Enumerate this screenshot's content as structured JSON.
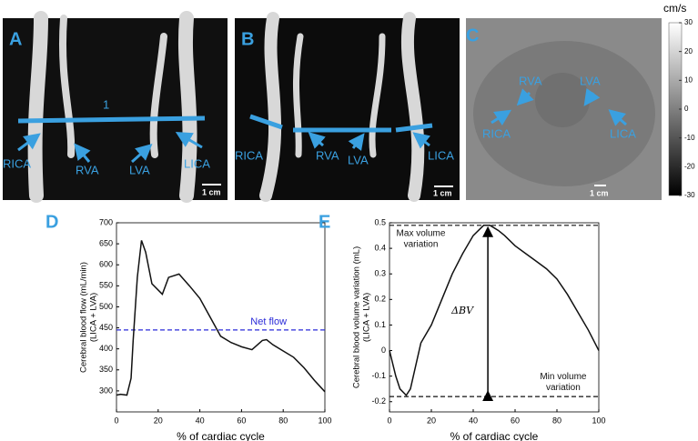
{
  "panels": {
    "A": {
      "letter": "A",
      "labels": [
        "1",
        "RICA",
        "RVA",
        "LVA",
        "LICA"
      ],
      "scale": "1 cm"
    },
    "B": {
      "letter": "B",
      "labels": [
        "RICA",
        "RVA",
        "LVA",
        "LICA"
      ],
      "scale": "1 cm"
    },
    "C": {
      "letter": "C",
      "labels": [
        "RVA",
        "LVA",
        "RICA",
        "LICA"
      ],
      "scale": "1 cm",
      "colorbar": {
        "unit": "cm/s",
        "lim": [
          -30,
          30
        ],
        "ticks": [
          30,
          20,
          10,
          0,
          -10,
          -20,
          -30
        ]
      }
    }
  },
  "chart_data": [
    {
      "type": "line",
      "panel": "D",
      "xlabel": "% of cardiac cycle",
      "ylabel": [
        "Cerebral blood flow (mL/min)",
        "(LICA + LVA)"
      ],
      "x": [
        0,
        2,
        5,
        7,
        8,
        10,
        12,
        14,
        17,
        22,
        25,
        30,
        35,
        40,
        45,
        50,
        55,
        60,
        65,
        70,
        72,
        75,
        80,
        85,
        90,
        95,
        100
      ],
      "values": [
        290,
        292,
        290,
        330,
        420,
        570,
        658,
        630,
        555,
        530,
        570,
        578,
        550,
        520,
        475,
        430,
        415,
        405,
        398,
        420,
        422,
        410,
        395,
        380,
        355,
        325,
        298
      ],
      "color": "#111111",
      "xlim": [
        0,
        100
      ],
      "xticks": [
        0,
        20,
        40,
        60,
        80,
        100
      ],
      "ylim": [
        250,
        700
      ],
      "yticks": [
        300,
        350,
        400,
        450,
        500,
        550,
        600,
        650,
        700
      ],
      "reference_lines": [
        {
          "value": 445,
          "label": [
            "Net flow"
          ],
          "color": "#2a2ad8"
        }
      ]
    },
    {
      "type": "line",
      "panel": "E",
      "xlabel": "% of cardiac cycle",
      "ylabel": [
        "Cerebral blood volume variation (mL)",
        "(LICA + LVA)"
      ],
      "x": [
        0,
        3,
        5,
        8,
        10,
        15,
        20,
        25,
        30,
        35,
        40,
        45,
        48,
        52,
        55,
        60,
        65,
        70,
        75,
        80,
        85,
        90,
        95,
        100
      ],
      "values": [
        0,
        -0.1,
        -0.15,
        -0.175,
        -0.15,
        0.03,
        0.1,
        0.2,
        0.3,
        0.38,
        0.45,
        0.49,
        0.49,
        0.47,
        0.45,
        0.41,
        0.38,
        0.35,
        0.32,
        0.28,
        0.22,
        0.15,
        0.08,
        0
      ],
      "color": "#111111",
      "xlim": [
        0,
        100
      ],
      "xticks": [
        0,
        20,
        40,
        60,
        80,
        100
      ],
      "ylim": [
        -0.24,
        0.5
      ],
      "yticks": [
        -0.2,
        -0.1,
        0,
        0.1,
        0.2,
        0.3,
        0.4,
        0.5
      ],
      "reference_lines": [
        {
          "value": 0.49,
          "label": [
            "Max volume",
            "variation"
          ],
          "color": "#111111"
        },
        {
          "value": -0.18,
          "label": [
            "Min volume",
            "variation"
          ],
          "color": "#111111"
        }
      ],
      "annotation": "ΔBV"
    }
  ]
}
